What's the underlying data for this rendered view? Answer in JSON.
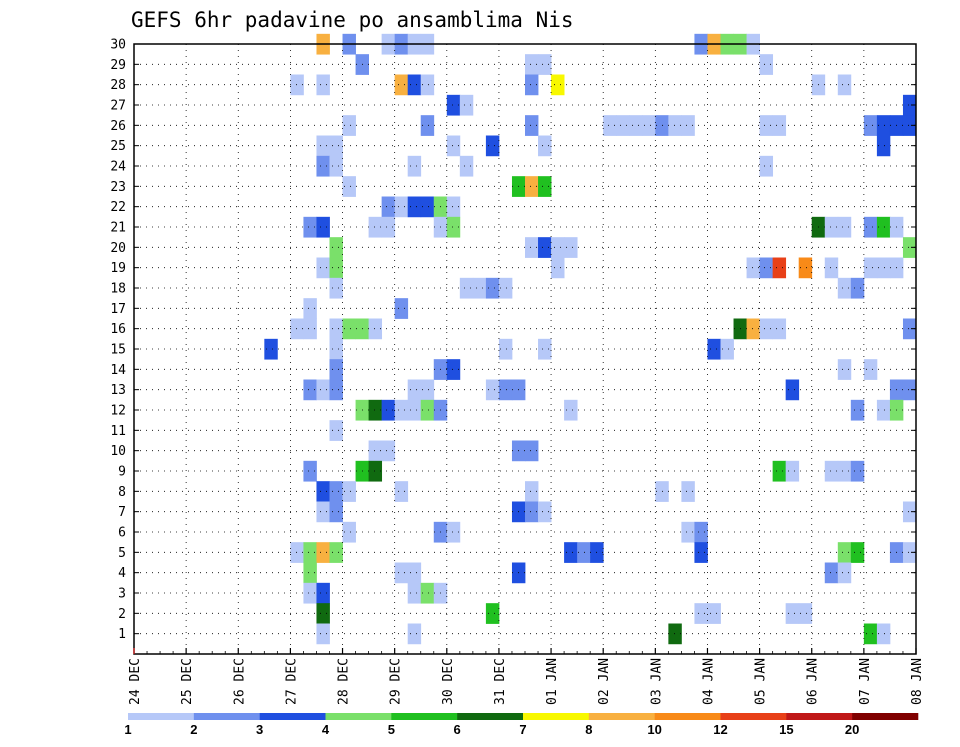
{
  "chart_data": {
    "type": "heatmap",
    "title": "GEFS 6hr padavine po ansamblima Nis",
    "xlabel": "",
    "ylabel": "",
    "grid": true,
    "x_ticks": [
      "24 DEC",
      "25 DEC",
      "26 DEC",
      "27 DEC",
      "28 DEC",
      "29 DEC",
      "30 DEC",
      "31 DEC",
      "01 JAN",
      "02 JAN",
      "03 JAN",
      "04 JAN",
      "05 JAN",
      "06 JAN",
      "07 JAN",
      "08 JAN"
    ],
    "x_unit": "6-hour step from 24 DEC 00Z",
    "xlim": [
      0,
      60
    ],
    "y_ticks": [
      "1",
      "2",
      "3",
      "4",
      "5",
      "6",
      "7",
      "8",
      "9",
      "10",
      "11",
      "12",
      "13",
      "14",
      "15",
      "16",
      "17",
      "18",
      "19",
      "20",
      "21",
      "22",
      "23",
      "24",
      "25",
      "26",
      "27",
      "28",
      "29",
      "30"
    ],
    "ylim": [
      0,
      30
    ],
    "colorbar": {
      "position": "bottom",
      "labels": [
        "1",
        "2",
        "3",
        "4",
        "5",
        "6",
        "7",
        "8",
        "10",
        "12",
        "15",
        "20"
      ],
      "colors": [
        "#b6c8f8",
        "#6f90ee",
        "#1f4fe0",
        "#7ae06a",
        "#20c020",
        "#106a10",
        "#f8f800",
        "#f8b040",
        "#f88a18",
        "#e84018",
        "#c01818",
        "#800000"
      ]
    },
    "cells": [
      {
        "member": 30,
        "x": 14.5,
        "level": 8
      },
      {
        "member": 30,
        "x": 16.5,
        "level": 2
      },
      {
        "member": 30,
        "x": 19.5,
        "level": 1
      },
      {
        "member": 30,
        "x": 20.5,
        "level": 2
      },
      {
        "member": 30,
        "x": 21.5,
        "level": 1
      },
      {
        "member": 30,
        "x": 22.5,
        "level": 1
      },
      {
        "member": 30,
        "x": 43.5,
        "level": 2
      },
      {
        "member": 30,
        "x": 44.5,
        "level": 8
      },
      {
        "member": 30,
        "x": 45.5,
        "level": 4
      },
      {
        "member": 30,
        "x": 46.5,
        "level": 4
      },
      {
        "member": 30,
        "x": 47.5,
        "level": 1
      },
      {
        "member": 29,
        "x": 17.5,
        "level": 2
      },
      {
        "member": 29,
        "x": 30.5,
        "level": 1
      },
      {
        "member": 29,
        "x": 31.5,
        "level": 1
      },
      {
        "member": 29,
        "x": 48.5,
        "level": 1
      },
      {
        "member": 28,
        "x": 12.5,
        "level": 1
      },
      {
        "member": 28,
        "x": 14.5,
        "level": 1
      },
      {
        "member": 28,
        "x": 20.5,
        "level": 8
      },
      {
        "member": 28,
        "x": 21.5,
        "level": 3
      },
      {
        "member": 28,
        "x": 22.5,
        "level": 1
      },
      {
        "member": 28,
        "x": 30.5,
        "level": 2
      },
      {
        "member": 28,
        "x": 32.5,
        "level": 7
      },
      {
        "member": 28,
        "x": 52.5,
        "level": 1
      },
      {
        "member": 28,
        "x": 54.5,
        "level": 1
      },
      {
        "member": 27,
        "x": 24.5,
        "level": 3
      },
      {
        "member": 27,
        "x": 25.5,
        "level": 1
      },
      {
        "member": 27,
        "x": 59.5,
        "level": 3
      },
      {
        "member": 26,
        "x": 16.5,
        "level": 1
      },
      {
        "member": 26,
        "x": 22.5,
        "level": 2
      },
      {
        "member": 26,
        "x": 30.5,
        "level": 2
      },
      {
        "member": 26,
        "x": 36.5,
        "level": 1
      },
      {
        "member": 26,
        "x": 37.5,
        "level": 1
      },
      {
        "member": 26,
        "x": 38.5,
        "level": 1
      },
      {
        "member": 26,
        "x": 39.5,
        "level": 1
      },
      {
        "member": 26,
        "x": 40.5,
        "level": 2
      },
      {
        "member": 26,
        "x": 41.5,
        "level": 1
      },
      {
        "member": 26,
        "x": 42.5,
        "level": 1
      },
      {
        "member": 26,
        "x": 48.5,
        "level": 1
      },
      {
        "member": 26,
        "x": 49.5,
        "level": 1
      },
      {
        "member": 26,
        "x": 56.5,
        "level": 2
      },
      {
        "member": 26,
        "x": 57.5,
        "level": 3
      },
      {
        "member": 26,
        "x": 58.5,
        "level": 3
      },
      {
        "member": 26,
        "x": 59.5,
        "level": 3
      },
      {
        "member": 25,
        "x": 14.5,
        "level": 1
      },
      {
        "member": 25,
        "x": 15.5,
        "level": 1
      },
      {
        "member": 25,
        "x": 24.5,
        "level": 1
      },
      {
        "member": 25,
        "x": 27.5,
        "level": 3
      },
      {
        "member": 25,
        "x": 31.5,
        "level": 1
      },
      {
        "member": 25,
        "x": 57.5,
        "level": 3
      },
      {
        "member": 24,
        "x": 14.5,
        "level": 2
      },
      {
        "member": 24,
        "x": 15.5,
        "level": 1
      },
      {
        "member": 24,
        "x": 21.5,
        "level": 1
      },
      {
        "member": 24,
        "x": 25.5,
        "level": 1
      },
      {
        "member": 24,
        "x": 48.5,
        "level": 1
      },
      {
        "member": 23,
        "x": 16.5,
        "level": 1
      },
      {
        "member": 23,
        "x": 29.5,
        "level": 5
      },
      {
        "member": 23,
        "x": 30.5,
        "level": 8
      },
      {
        "member": 23,
        "x": 31.5,
        "level": 5
      },
      {
        "member": 22,
        "x": 19.5,
        "level": 2
      },
      {
        "member": 22,
        "x": 20.5,
        "level": 1
      },
      {
        "member": 22,
        "x": 21.5,
        "level": 3
      },
      {
        "member": 22,
        "x": 22.5,
        "level": 3
      },
      {
        "member": 22,
        "x": 23.5,
        "level": 4
      },
      {
        "member": 22,
        "x": 24.5,
        "level": 1
      },
      {
        "member": 21,
        "x": 13.5,
        "level": 2
      },
      {
        "member": 21,
        "x": 14.5,
        "level": 3
      },
      {
        "member": 21,
        "x": 18.5,
        "level": 1
      },
      {
        "member": 21,
        "x": 19.5,
        "level": 1
      },
      {
        "member": 21,
        "x": 23.5,
        "level": 1
      },
      {
        "member": 21,
        "x": 24.5,
        "level": 4
      },
      {
        "member": 21,
        "x": 52.5,
        "level": 6
      },
      {
        "member": 21,
        "x": 53.5,
        "level": 1
      },
      {
        "member": 21,
        "x": 54.5,
        "level": 1
      },
      {
        "member": 21,
        "x": 56.5,
        "level": 2
      },
      {
        "member": 21,
        "x": 57.5,
        "level": 5
      },
      {
        "member": 21,
        "x": 58.5,
        "level": 1
      },
      {
        "member": 20,
        "x": 15.5,
        "level": 4
      },
      {
        "member": 20,
        "x": 30.5,
        "level": 1
      },
      {
        "member": 20,
        "x": 31.5,
        "level": 3
      },
      {
        "member": 20,
        "x": 32.5,
        "level": 1
      },
      {
        "member": 20,
        "x": 33.5,
        "level": 1
      },
      {
        "member": 20,
        "x": 59.5,
        "level": 4
      },
      {
        "member": 19,
        "x": 14.5,
        "level": 1
      },
      {
        "member": 19,
        "x": 15.5,
        "level": 4
      },
      {
        "member": 19,
        "x": 32.5,
        "level": 1
      },
      {
        "member": 19,
        "x": 47.5,
        "level": 1
      },
      {
        "member": 19,
        "x": 48.5,
        "level": 2
      },
      {
        "member": 19,
        "x": 49.5,
        "level": 10
      },
      {
        "member": 19,
        "x": 51.5,
        "level": 9
      },
      {
        "member": 19,
        "x": 53.5,
        "level": 1
      },
      {
        "member": 19,
        "x": 56.5,
        "level": 1
      },
      {
        "member": 19,
        "x": 57.5,
        "level": 1
      },
      {
        "member": 19,
        "x": 58.5,
        "level": 1
      },
      {
        "member": 18,
        "x": 15.5,
        "level": 1
      },
      {
        "member": 18,
        "x": 25.5,
        "level": 1
      },
      {
        "member": 18,
        "x": 26.5,
        "level": 1
      },
      {
        "member": 18,
        "x": 27.5,
        "level": 2
      },
      {
        "member": 18,
        "x": 28.5,
        "level": 1
      },
      {
        "member": 18,
        "x": 54.5,
        "level": 1
      },
      {
        "member": 18,
        "x": 55.5,
        "level": 2
      },
      {
        "member": 17,
        "x": 13.5,
        "level": 1
      },
      {
        "member": 17,
        "x": 20.5,
        "level": 2
      },
      {
        "member": 16,
        "x": 12.5,
        "level": 1
      },
      {
        "member": 16,
        "x": 13.5,
        "level": 1
      },
      {
        "member": 16,
        "x": 15.5,
        "level": 1
      },
      {
        "member": 16,
        "x": 16.5,
        "level": 4
      },
      {
        "member": 16,
        "x": 17.5,
        "level": 4
      },
      {
        "member": 16,
        "x": 18.5,
        "level": 1
      },
      {
        "member": 16,
        "x": 46.5,
        "level": 6
      },
      {
        "member": 16,
        "x": 47.5,
        "level": 8
      },
      {
        "member": 16,
        "x": 48.5,
        "level": 1
      },
      {
        "member": 16,
        "x": 49.5,
        "level": 1
      },
      {
        "member": 16,
        "x": 59.5,
        "level": 2
      },
      {
        "member": 15,
        "x": 10.5,
        "level": 3
      },
      {
        "member": 15,
        "x": 15.5,
        "level": 1
      },
      {
        "member": 15,
        "x": 28.5,
        "level": 1
      },
      {
        "member": 15,
        "x": 31.5,
        "level": 1
      },
      {
        "member": 15,
        "x": 44.5,
        "level": 3
      },
      {
        "member": 15,
        "x": 45.5,
        "level": 1
      },
      {
        "member": 14,
        "x": 15.5,
        "level": 2
      },
      {
        "member": 14,
        "x": 23.5,
        "level": 2
      },
      {
        "member": 14,
        "x": 24.5,
        "level": 3
      },
      {
        "member": 14,
        "x": 54.5,
        "level": 1
      },
      {
        "member": 14,
        "x": 56.5,
        "level": 1
      },
      {
        "member": 13,
        "x": 13.5,
        "level": 2
      },
      {
        "member": 13,
        "x": 14.5,
        "level": 1
      },
      {
        "member": 13,
        "x": 15.5,
        "level": 2
      },
      {
        "member": 13,
        "x": 21.5,
        "level": 1
      },
      {
        "member": 13,
        "x": 22.5,
        "level": 1
      },
      {
        "member": 13,
        "x": 27.5,
        "level": 1
      },
      {
        "member": 13,
        "x": 28.5,
        "level": 2
      },
      {
        "member": 13,
        "x": 29.5,
        "level": 2
      },
      {
        "member": 13,
        "x": 50.5,
        "level": 3
      },
      {
        "member": 13,
        "x": 58.5,
        "level": 2
      },
      {
        "member": 13,
        "x": 59.5,
        "level": 2
      },
      {
        "member": 12,
        "x": 17.5,
        "level": 4
      },
      {
        "member": 12,
        "x": 18.5,
        "level": 6
      },
      {
        "member": 12,
        "x": 19.5,
        "level": 3
      },
      {
        "member": 12,
        "x": 20.5,
        "level": 1
      },
      {
        "member": 12,
        "x": 21.5,
        "level": 1
      },
      {
        "member": 12,
        "x": 22.5,
        "level": 4
      },
      {
        "member": 12,
        "x": 23.5,
        "level": 2
      },
      {
        "member": 12,
        "x": 33.5,
        "level": 1
      },
      {
        "member": 12,
        "x": 55.5,
        "level": 2
      },
      {
        "member": 12,
        "x": 57.5,
        "level": 1
      },
      {
        "member": 12,
        "x": 58.5,
        "level": 4
      },
      {
        "member": 11,
        "x": 15.5,
        "level": 1
      },
      {
        "member": 10,
        "x": 18.5,
        "level": 1
      },
      {
        "member": 10,
        "x": 19.5,
        "level": 1
      },
      {
        "member": 10,
        "x": 29.5,
        "level": 2
      },
      {
        "member": 10,
        "x": 30.5,
        "level": 2
      },
      {
        "member": 9,
        "x": 13.5,
        "level": 2
      },
      {
        "member": 9,
        "x": 17.5,
        "level": 5
      },
      {
        "member": 9,
        "x": 18.5,
        "level": 6
      },
      {
        "member": 9,
        "x": 49.5,
        "level": 5
      },
      {
        "member": 9,
        "x": 50.5,
        "level": 1
      },
      {
        "member": 9,
        "x": 53.5,
        "level": 1
      },
      {
        "member": 9,
        "x": 54.5,
        "level": 1
      },
      {
        "member": 9,
        "x": 55.5,
        "level": 2
      },
      {
        "member": 8,
        "x": 14.5,
        "level": 3
      },
      {
        "member": 8,
        "x": 15.5,
        "level": 2
      },
      {
        "member": 8,
        "x": 16.5,
        "level": 1
      },
      {
        "member": 8,
        "x": 20.5,
        "level": 1
      },
      {
        "member": 8,
        "x": 30.5,
        "level": 1
      },
      {
        "member": 8,
        "x": 40.5,
        "level": 1
      },
      {
        "member": 8,
        "x": 42.5,
        "level": 1
      },
      {
        "member": 7,
        "x": 14.5,
        "level": 1
      },
      {
        "member": 7,
        "x": 15.5,
        "level": 2
      },
      {
        "member": 7,
        "x": 29.5,
        "level": 3
      },
      {
        "member": 7,
        "x": 30.5,
        "level": 2
      },
      {
        "member": 7,
        "x": 31.5,
        "level": 1
      },
      {
        "member": 7,
        "x": 59.5,
        "level": 1
      },
      {
        "member": 6,
        "x": 16.5,
        "level": 1
      },
      {
        "member": 6,
        "x": 23.5,
        "level": 2
      },
      {
        "member": 6,
        "x": 24.5,
        "level": 1
      },
      {
        "member": 6,
        "x": 42.5,
        "level": 1
      },
      {
        "member": 6,
        "x": 43.5,
        "level": 2
      },
      {
        "member": 5,
        "x": 12.5,
        "level": 1
      },
      {
        "member": 5,
        "x": 13.5,
        "level": 4
      },
      {
        "member": 5,
        "x": 14.5,
        "level": 8
      },
      {
        "member": 5,
        "x": 15.5,
        "level": 4
      },
      {
        "member": 5,
        "x": 33.5,
        "level": 3
      },
      {
        "member": 5,
        "x": 34.5,
        "level": 2
      },
      {
        "member": 5,
        "x": 35.5,
        "level": 3
      },
      {
        "member": 5,
        "x": 43.5,
        "level": 3
      },
      {
        "member": 5,
        "x": 54.5,
        "level": 4
      },
      {
        "member": 5,
        "x": 55.5,
        "level": 5
      },
      {
        "member": 5,
        "x": 58.5,
        "level": 2
      },
      {
        "member": 5,
        "x": 59.5,
        "level": 1
      },
      {
        "member": 4,
        "x": 13.5,
        "level": 4
      },
      {
        "member": 4,
        "x": 20.5,
        "level": 1
      },
      {
        "member": 4,
        "x": 21.5,
        "level": 1
      },
      {
        "member": 4,
        "x": 29.5,
        "level": 3
      },
      {
        "member": 4,
        "x": 53.5,
        "level": 2
      },
      {
        "member": 4,
        "x": 54.5,
        "level": 1
      },
      {
        "member": 3,
        "x": 13.5,
        "level": 1
      },
      {
        "member": 3,
        "x": 14.5,
        "level": 3
      },
      {
        "member": 3,
        "x": 21.5,
        "level": 1
      },
      {
        "member": 3,
        "x": 22.5,
        "level": 4
      },
      {
        "member": 3,
        "x": 23.5,
        "level": 1
      },
      {
        "member": 2,
        "x": 14.5,
        "level": 6
      },
      {
        "member": 2,
        "x": 27.5,
        "level": 5
      },
      {
        "member": 2,
        "x": 43.5,
        "level": 1
      },
      {
        "member": 2,
        "x": 44.5,
        "level": 1
      },
      {
        "member": 2,
        "x": 50.5,
        "level": 1
      },
      {
        "member": 2,
        "x": 51.5,
        "level": 1
      },
      {
        "member": 1,
        "x": 14.5,
        "level": 1
      },
      {
        "member": 1,
        "x": 21.5,
        "level": 1
      },
      {
        "member": 1,
        "x": 41.5,
        "level": 6
      },
      {
        "member": 1,
        "x": 56.5,
        "level": 5
      },
      {
        "member": 1,
        "x": 57.5,
        "level": 1
      }
    ]
  }
}
